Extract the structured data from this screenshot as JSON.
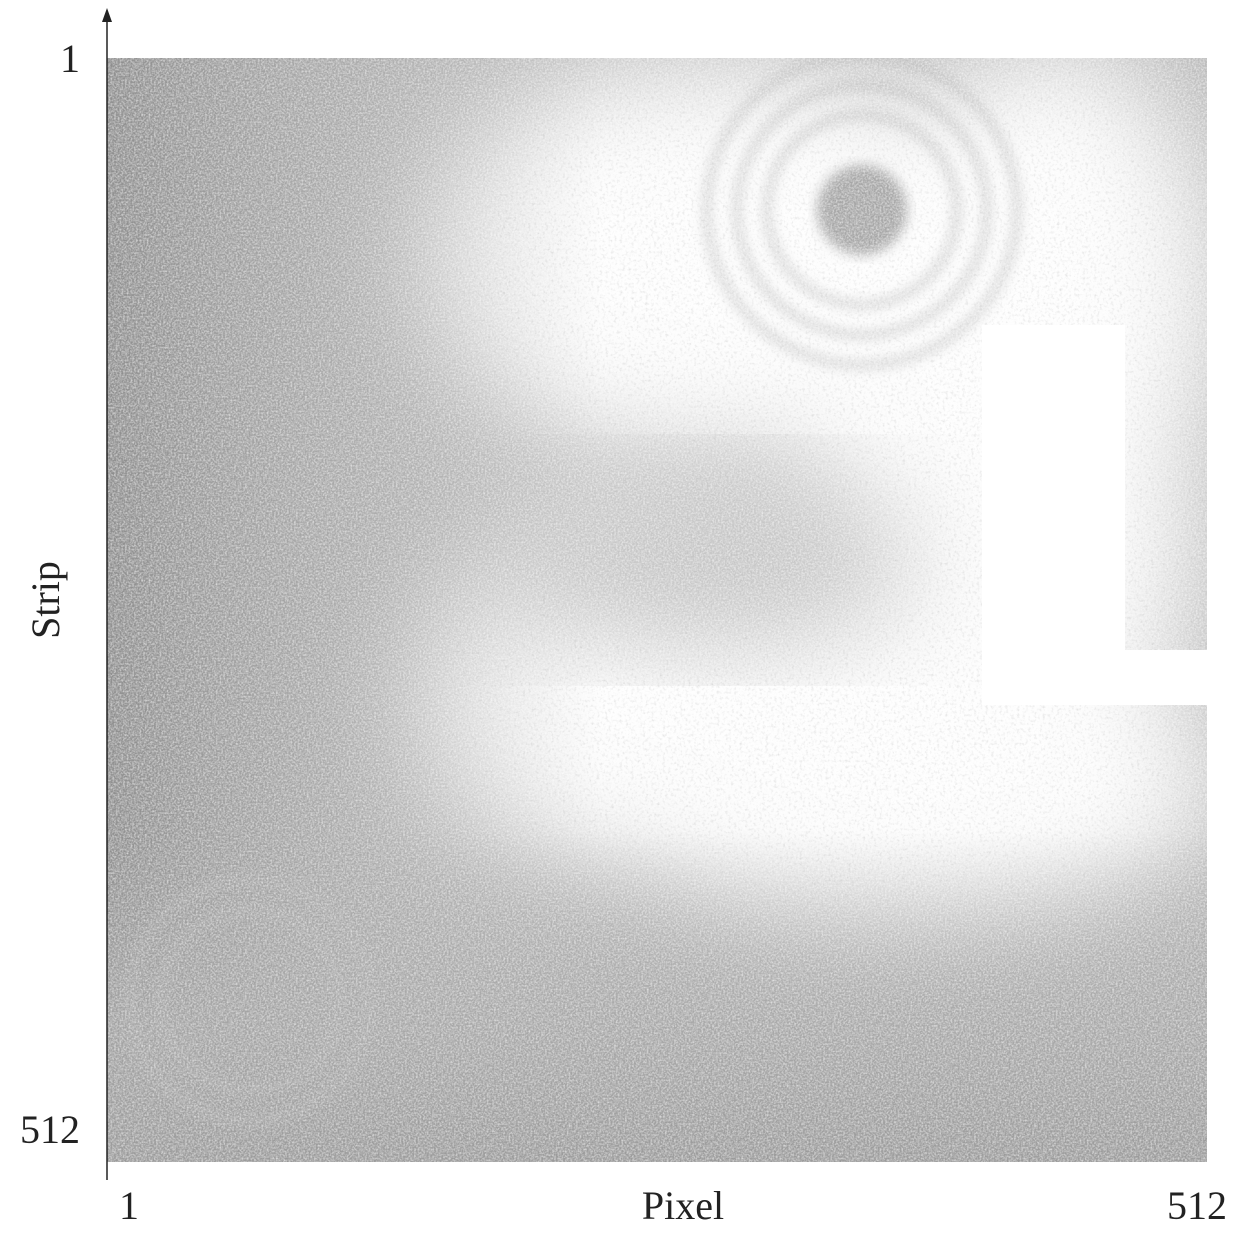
{
  "chart_data": {
    "type": "image",
    "xlabel": "Pixel",
    "ylabel": "Strip",
    "xlim": [
      1,
      512
    ],
    "ylim": [
      512,
      1
    ],
    "xticks": [
      1,
      512
    ],
    "yticks": [
      1,
      512
    ]
  }
}
